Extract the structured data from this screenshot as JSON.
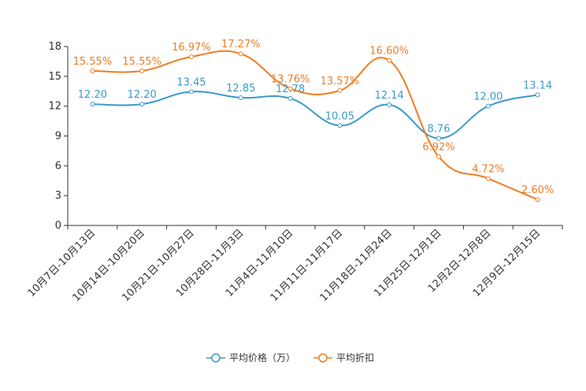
{
  "chart_data": {
    "type": "line",
    "categories": [
      "10月7日-10月13日",
      "10月14日-10月20日",
      "10月21日-10月27日",
      "10月28日-11月3日",
      "11月4日-11月10日",
      "11月11日-11月17日",
      "11月18日-11月24日",
      "11月25日-12月1日",
      "12月2日-12月8日",
      "12月9日-12月15日"
    ],
    "ylim": [
      0,
      18
    ],
    "yticks": [
      0,
      3,
      6,
      9,
      12,
      15,
      18
    ],
    "series": [
      {
        "name": "平均价格（万）",
        "color": "#3a9ac9",
        "values": [
          12.2,
          12.2,
          13.45,
          12.85,
          12.78,
          10.05,
          12.14,
          8.76,
          12.0,
          13.14
        ],
        "labels": [
          "12.20",
          "12.20",
          "13.45",
          "12.85",
          "12.78",
          "10.05",
          "12.14",
          "8.76",
          "12.00",
          "13.14"
        ]
      },
      {
        "name": "平均折扣",
        "color": "#f07d22",
        "values": [
          15.55,
          15.55,
          16.97,
          17.27,
          13.76,
          13.57,
          16.6,
          6.92,
          4.72,
          2.6
        ],
        "labels": [
          "15.55%",
          "15.55%",
          "16.97%",
          "17.27%",
          "13.76%",
          "13.57%",
          "16.60%",
          "6.92%",
          "4.72%",
          "2.60%"
        ]
      }
    ],
    "legend_position": "bottom"
  }
}
